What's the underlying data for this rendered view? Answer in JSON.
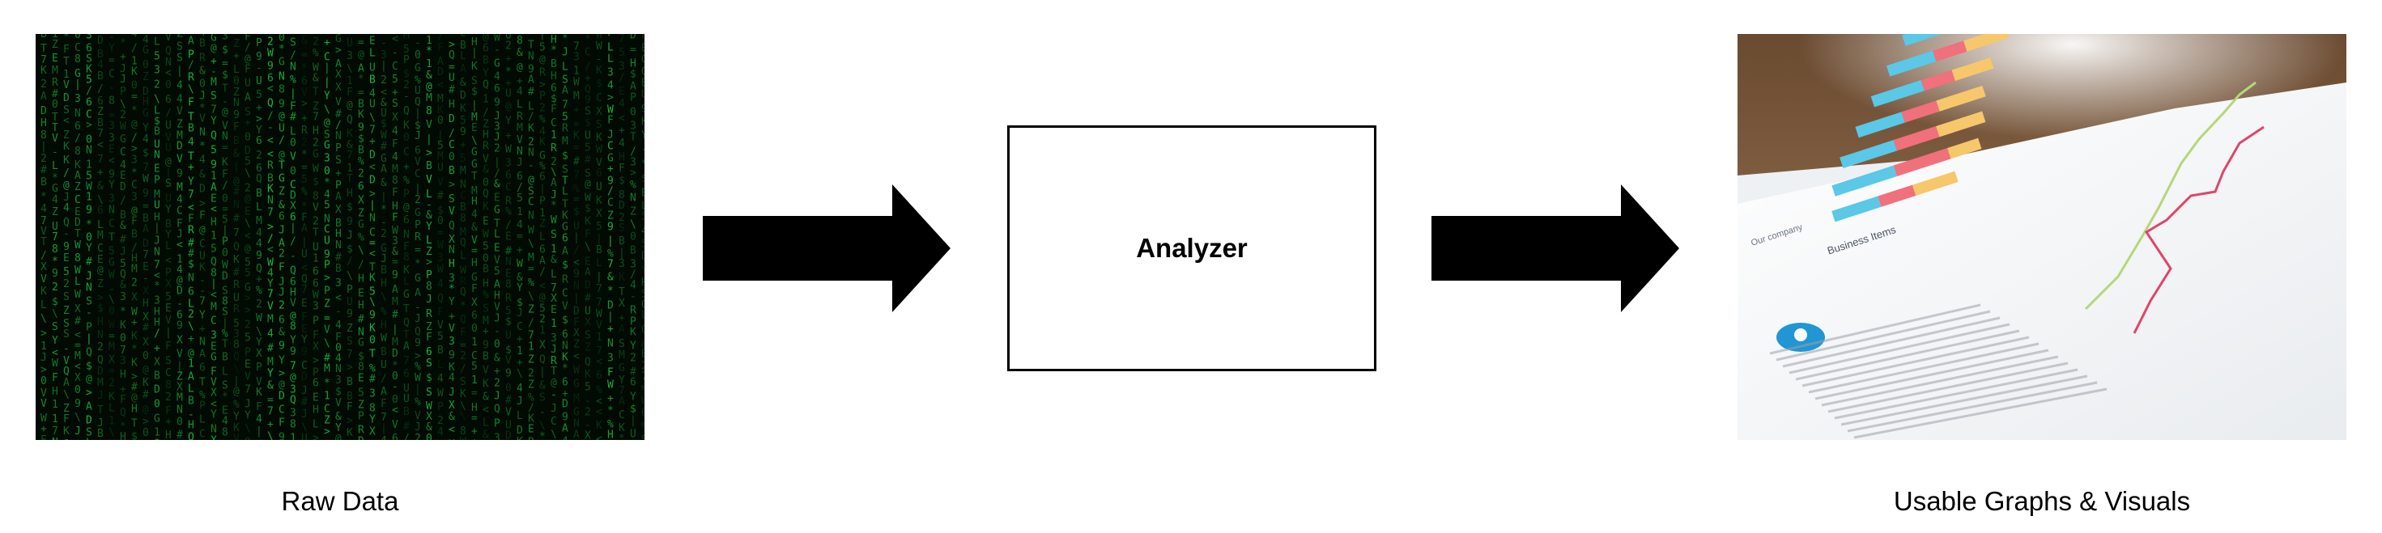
{
  "raw_data": {
    "caption": "Raw Data",
    "icon": "matrix-code-photo"
  },
  "analyzer": {
    "label": "Analyzer"
  },
  "output": {
    "caption": "Usable Graphs & Visuals",
    "icon": "business-report-photo",
    "report_heading": "Business Items",
    "report_subheading": "Our company"
  },
  "colors": {
    "code_green": "#22c55e",
    "arrow": "#000000",
    "bar_blue": "#5ac8e6",
    "bar_red": "#f0707c",
    "bar_yellow": "#f7c76b",
    "line_green": "#b6d67a",
    "line_red": "#e0456a"
  }
}
